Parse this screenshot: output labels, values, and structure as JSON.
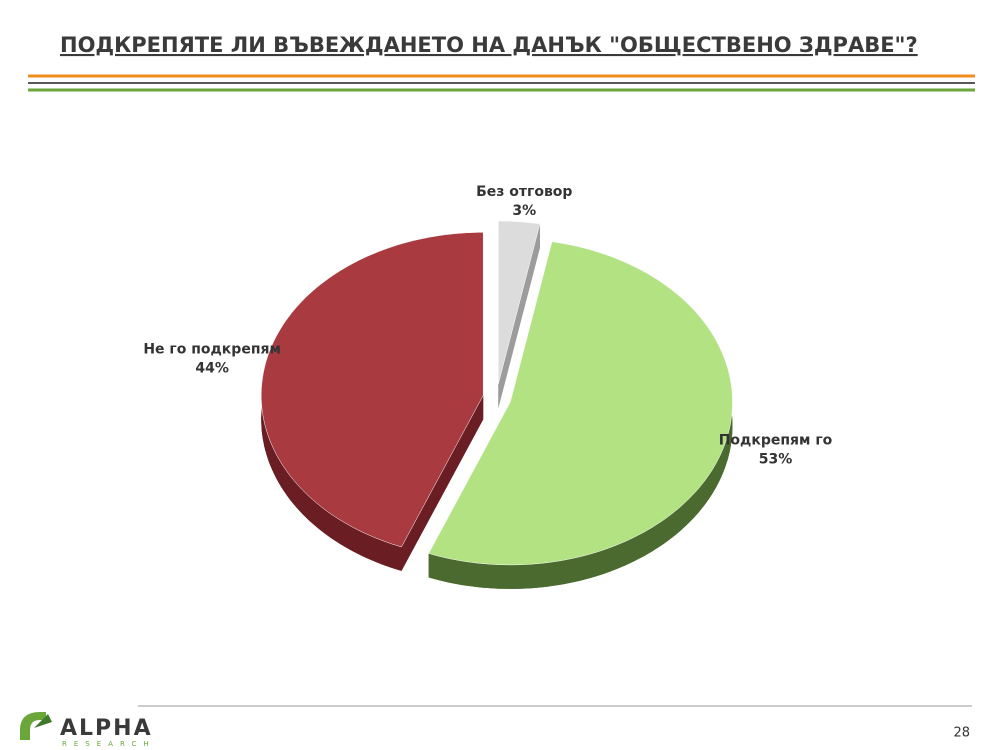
{
  "chart_data": {
    "type": "pie",
    "title": "ПОДКРЕПЯТЕ ЛИ ВЪВЕЖДАНЕТО НА ДАНЪК \"ОБЩЕСТВЕНО ЗДРАВЕ\"?",
    "categories": [
      "Без отговор",
      "Подкрепям го",
      "Не го подкрепям"
    ],
    "values": [
      3,
      53,
      44
    ],
    "value_labels": [
      "3%",
      "53%",
      "44%"
    ],
    "colors": [
      "#dcdcdc",
      "#b2e281",
      "#a83a40"
    ],
    "side_colors": [
      "#9c9c9c",
      "#4b6a2f",
      "#6a1e24"
    ]
  },
  "footer": {
    "page": "28",
    "logo": "ALPHA",
    "logo_sub": "RESEARCH"
  }
}
